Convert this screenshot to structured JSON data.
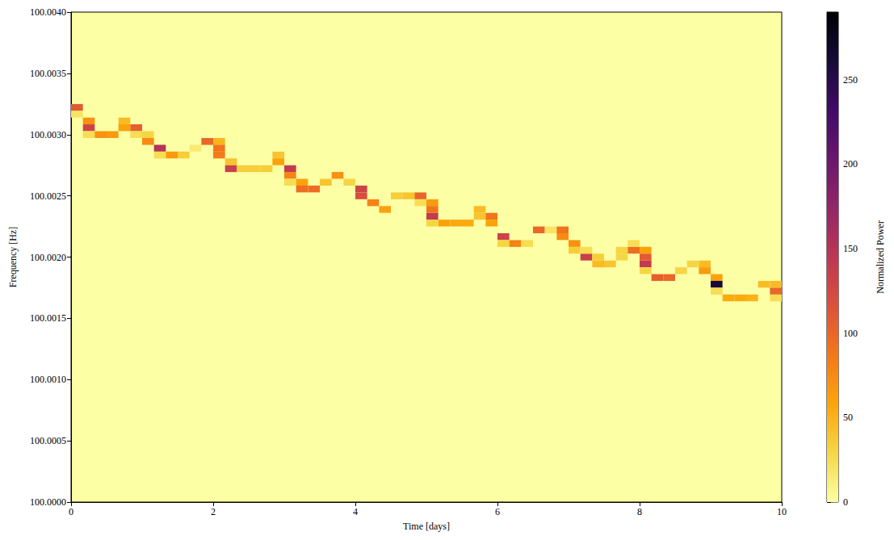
{
  "chart_data": {
    "type": "heatmap",
    "x_label": "Time [days]",
    "y_label": "Frequency [Hz]",
    "xlim": [
      0,
      10
    ],
    "xticks": [
      0,
      2,
      4,
      6,
      8,
      10
    ],
    "ylim": [
      100,
      100.004
    ],
    "yticks": [
      {
        "value": 100,
        "label": "100.0000"
      },
      {
        "value": 100.0005,
        "label": "100.0005"
      },
      {
        "value": 100.001,
        "label": "100.0010"
      },
      {
        "value": 100.0015,
        "label": "100.0015"
      },
      {
        "value": 100.002,
        "label": "100.0020"
      },
      {
        "value": 100.0025,
        "label": "100.0025"
      },
      {
        "value": 100.003,
        "label": "100.0030"
      },
      {
        "value": 100.0035,
        "label": "100.0035"
      },
      {
        "value": 100.004,
        "label": "100.0040"
      }
    ],
    "time_bin": 0.16667,
    "freq_bin": 5.56e-05,
    "cells": [
      [
        0.083,
        100.003222,
        110
      ],
      [
        0.083,
        100.003167,
        20
      ],
      [
        0.25,
        100.003111,
        70
      ],
      [
        0.25,
        100.003056,
        130
      ],
      [
        0.25,
        100.003,
        25
      ],
      [
        0.417,
        100.003,
        70
      ],
      [
        0.583,
        100.003,
        65
      ],
      [
        0.75,
        100.003111,
        45
      ],
      [
        0.75,
        100.003056,
        60
      ],
      [
        0.917,
        100.003056,
        105
      ],
      [
        0.917,
        100.003,
        25
      ],
      [
        1.083,
        100.003,
        30
      ],
      [
        1.083,
        100.002944,
        75
      ],
      [
        1.25,
        100.002889,
        150
      ],
      [
        1.25,
        100.002833,
        25
      ],
      [
        1.417,
        100.002833,
        65
      ],
      [
        1.583,
        100.002833,
        35
      ],
      [
        1.75,
        100.002889,
        15
      ],
      [
        1.917,
        100.002944,
        100
      ],
      [
        2.083,
        100.002944,
        50
      ],
      [
        2.083,
        100.002889,
        90
      ],
      [
        2.083,
        100.002833,
        85
      ],
      [
        2.25,
        100.002778,
        40
      ],
      [
        2.25,
        100.002722,
        135
      ],
      [
        2.417,
        100.002722,
        35
      ],
      [
        2.583,
        100.002722,
        35
      ],
      [
        2.75,
        100.002722,
        35
      ],
      [
        2.917,
        100.002833,
        40
      ],
      [
        2.917,
        100.002778,
        60
      ],
      [
        3.083,
        100.002722,
        140
      ],
      [
        3.083,
        100.002667,
        80
      ],
      [
        3.083,
        100.002611,
        25
      ],
      [
        3.25,
        100.002611,
        60
      ],
      [
        3.25,
        100.002556,
        95
      ],
      [
        3.417,
        100.002556,
        95
      ],
      [
        3.583,
        100.002611,
        40
      ],
      [
        3.75,
        100.002667,
        70
      ],
      [
        3.917,
        100.002611,
        30
      ],
      [
        4.083,
        100.002556,
        130
      ],
      [
        4.083,
        100.0025,
        120
      ],
      [
        4.25,
        100.002444,
        80
      ],
      [
        4.417,
        100.002389,
        60
      ],
      [
        4.583,
        100.0025,
        35
      ],
      [
        4.75,
        100.0025,
        40
      ],
      [
        4.917,
        100.0025,
        100
      ],
      [
        4.917,
        100.002444,
        25
      ],
      [
        5.083,
        100.002444,
        65
      ],
      [
        5.083,
        100.002389,
        90
      ],
      [
        5.083,
        100.002333,
        140
      ],
      [
        5.083,
        100.002278,
        30
      ],
      [
        5.25,
        100.002278,
        60
      ],
      [
        5.417,
        100.002278,
        55
      ],
      [
        5.583,
        100.002278,
        55
      ],
      [
        5.75,
        100.002389,
        45
      ],
      [
        5.75,
        100.002333,
        40
      ],
      [
        5.917,
        100.002333,
        90
      ],
      [
        5.917,
        100.002278,
        60
      ],
      [
        6.083,
        100.002167,
        130
      ],
      [
        6.083,
        100.002111,
        30
      ],
      [
        6.25,
        100.002111,
        80
      ],
      [
        6.417,
        100.002111,
        25
      ],
      [
        6.583,
        100.002222,
        100
      ],
      [
        6.75,
        100.002222,
        20
      ],
      [
        6.917,
        100.002222,
        90
      ],
      [
        6.917,
        100.002167,
        75
      ],
      [
        7.083,
        100.002111,
        70
      ],
      [
        7.083,
        100.002056,
        35
      ],
      [
        7.25,
        100.002,
        135
      ],
      [
        7.25,
        100.002056,
        25
      ],
      [
        7.417,
        100.002,
        35
      ],
      [
        7.417,
        100.001944,
        45
      ],
      [
        7.583,
        100.001944,
        40
      ],
      [
        7.75,
        100.002,
        30
      ],
      [
        7.75,
        100.002056,
        30
      ],
      [
        7.917,
        100.002056,
        95
      ],
      [
        7.917,
        100.002111,
        25
      ],
      [
        8.083,
        100.002056,
        60
      ],
      [
        8.083,
        100.002,
        110
      ],
      [
        8.083,
        100.001944,
        140
      ],
      [
        8.083,
        100.001889,
        30
      ],
      [
        8.25,
        100.001833,
        105
      ],
      [
        8.417,
        100.001833,
        100
      ],
      [
        8.583,
        100.001889,
        30
      ],
      [
        8.75,
        100.001944,
        30
      ],
      [
        8.917,
        100.001944,
        45
      ],
      [
        8.917,
        100.001889,
        65
      ],
      [
        9.083,
        100.001833,
        60
      ],
      [
        9.083,
        100.001778,
        260
      ],
      [
        9.083,
        100.001722,
        25
      ],
      [
        9.25,
        100.001667,
        55
      ],
      [
        9.417,
        100.001667,
        55
      ],
      [
        9.583,
        100.001667,
        50
      ],
      [
        9.75,
        100.001778,
        45
      ],
      [
        9.917,
        100.001778,
        45
      ],
      [
        9.917,
        100.001722,
        100
      ],
      [
        9.917,
        100.001667,
        25
      ]
    ],
    "colorbar": {
      "label": "Normalized Power",
      "lim": [
        0,
        290
      ],
      "ticks": [
        0,
        50,
        100,
        150,
        200,
        250
      ]
    }
  }
}
